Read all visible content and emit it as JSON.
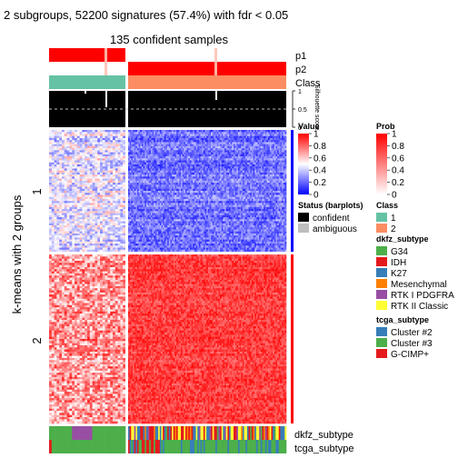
{
  "chart_data": {
    "type": "heatmap",
    "title": "2 subgroups, 52200 signatures (57.4%) with fdr < 0.05",
    "subtitle": "135 confident samples",
    "ylabel": "k-means with 2 groups",
    "row_groups": [
      "1",
      "2"
    ],
    "column_groups": {
      "group1_count": 30,
      "group2_count": 105
    },
    "top_annotations": [
      "p1",
      "p2",
      "Class"
    ],
    "silhouette": {
      "label": "Silhouette score",
      "ticks": [
        "1",
        "0.5",
        "0"
      ],
      "dashed_line_at": 0.5
    },
    "bottom_annotations": [
      "dkfz_subtype",
      "tcga_subtype"
    ],
    "legends": {
      "value": {
        "title": "Value",
        "ticks": [
          "1",
          "0.8",
          "0.6",
          "0.4",
          "0.2",
          "0"
        ],
        "colors": [
          "#0000ff",
          "#ffffff",
          "#ff0000"
        ]
      },
      "prob": {
        "title": "Prob",
        "ticks": [
          "1",
          "0.8",
          "0.6",
          "0.4",
          "0.2",
          "0"
        ],
        "colors": [
          "#ffffff",
          "#ff0000"
        ]
      },
      "status": {
        "title": "Status (barplots)",
        "items": [
          {
            "label": "confident",
            "color": "#000000"
          },
          {
            "label": "ambiguous",
            "color": "#bebebe"
          }
        ]
      },
      "class": {
        "title": "Class",
        "items": [
          {
            "label": "1",
            "color": "#66c2a5"
          },
          {
            "label": "2",
            "color": "#fc8d62"
          }
        ]
      },
      "dkfz_subtype": {
        "title": "dkfz_subtype",
        "items": [
          {
            "label": "G34",
            "color": "#4daf4a"
          },
          {
            "label": "IDH",
            "color": "#e41a1c"
          },
          {
            "label": "K27",
            "color": "#377eb8"
          },
          {
            "label": "Mesenchymal",
            "color": "#ff7f00"
          },
          {
            "label": "RTK I PDGFRA",
            "color": "#984ea3"
          },
          {
            "label": "RTK II Classic",
            "color": "#ffff33"
          }
        ]
      },
      "tcga_subtype": {
        "title": "tcga_subtype",
        "items": [
          {
            "label": "Cluster #2",
            "color": "#377eb8"
          },
          {
            "label": "Cluster #3",
            "color": "#4daf4a"
          },
          {
            "label": "G-CIMP+",
            "color": "#e41a1c"
          }
        ]
      }
    }
  }
}
